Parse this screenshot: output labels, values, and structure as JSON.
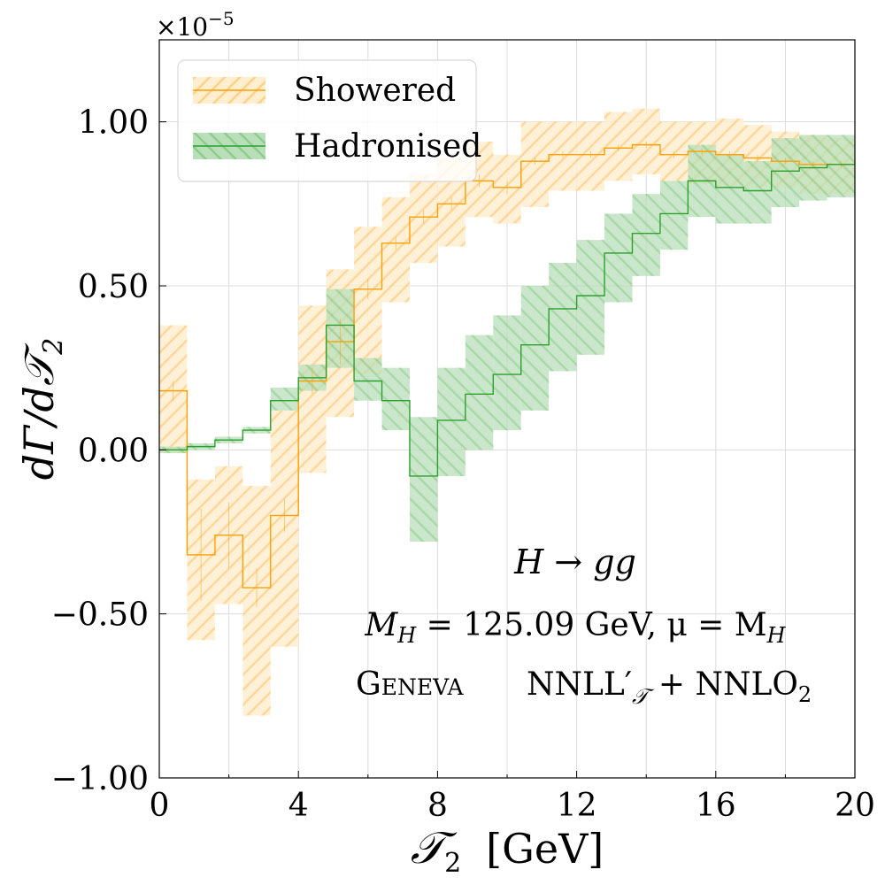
{
  "chart_data": {
    "type": "line",
    "xlabel_main": "𝒯",
    "xlabel_sub": "2",
    "xlabel_unit": "[GeV]",
    "ylabel_main": "dΓ/d𝒯",
    "ylabel_sub": "2",
    "y_scale_label": "×10",
    "y_scale_exp": "−5",
    "xlim": [
      0,
      20
    ],
    "ylim": [
      -1.0,
      1.25
    ],
    "x_ticks": [
      0,
      4,
      8,
      12,
      16,
      20
    ],
    "x_tick_labels": [
      "0",
      "4",
      "8",
      "12",
      "16",
      "20"
    ],
    "y_ticks": [
      -1.0,
      -0.5,
      0.0,
      0.5,
      1.0
    ],
    "y_tick_labels": [
      "−1.00",
      "−0.50",
      "0.00",
      "0.50",
      "1.00"
    ],
    "grid": true,
    "legend_position": "top-left",
    "bin_edges": [
      0,
      0.8,
      1.6,
      2.4,
      3.2,
      4.0,
      4.8,
      5.6,
      6.4,
      7.2,
      8.0,
      8.8,
      9.6,
      10.4,
      11.2,
      12.0,
      12.8,
      13.6,
      14.4,
      15.2,
      16.0,
      16.8,
      17.6,
      18.4,
      19.2,
      20.0
    ],
    "series": [
      {
        "name": "Showered",
        "color": "#ff9f00",
        "band_color": "#ffd89a",
        "values": [
          0.18,
          -0.32,
          -0.26,
          -0.42,
          -0.2,
          0.21,
          0.33,
          0.49,
          0.63,
          0.71,
          0.75,
          0.82,
          0.8,
          0.88,
          0.9,
          0.9,
          0.92,
          0.93,
          0.9,
          0.91,
          0.9,
          0.89,
          0.88,
          0.87,
          0.87
        ],
        "lower": [
          -0.01,
          -0.58,
          -0.47,
          -0.81,
          -0.6,
          -0.07,
          0.1,
          0.23,
          0.45,
          0.57,
          0.62,
          0.71,
          0.69,
          0.74,
          0.79,
          0.79,
          0.82,
          0.84,
          0.82,
          0.81,
          0.8,
          0.8,
          0.8,
          0.78,
          0.78
        ],
        "upper": [
          0.38,
          -0.09,
          -0.05,
          -0.11,
          0.12,
          0.44,
          0.55,
          0.68,
          0.77,
          0.84,
          0.89,
          0.94,
          0.9,
          1.0,
          1.0,
          1.0,
          1.03,
          1.04,
          1.0,
          1.0,
          1.01,
          0.99,
          0.97,
          0.96,
          0.95
        ],
        "errors": [
          0.03,
          0.14,
          0.1,
          0.06,
          0.05,
          0.04,
          0.07,
          0.03,
          0.02,
          0.02,
          0.02,
          0.02,
          0.02,
          0.01,
          0.01,
          0.01,
          0.01,
          0.01,
          0.01,
          0.01,
          0.01,
          0.01,
          0.01,
          0.01,
          0.01
        ]
      },
      {
        "name": "Hadronised",
        "color": "#2ca02c",
        "band_color": "#9fd49f",
        "values": [
          0.0,
          0.01,
          0.03,
          0.06,
          0.15,
          0.22,
          0.38,
          0.21,
          0.15,
          -0.08,
          0.09,
          0.17,
          0.23,
          0.32,
          0.43,
          0.47,
          0.6,
          0.66,
          0.72,
          0.82,
          0.8,
          0.79,
          0.85,
          0.86,
          0.87
        ],
        "lower": [
          -0.01,
          0.0,
          0.02,
          0.05,
          0.12,
          0.18,
          0.25,
          0.15,
          0.06,
          -0.28,
          -0.08,
          0.0,
          0.06,
          0.12,
          0.24,
          0.29,
          0.45,
          0.53,
          0.61,
          0.71,
          0.69,
          0.69,
          0.74,
          0.76,
          0.77
        ],
        "upper": [
          0.01,
          0.02,
          0.04,
          0.07,
          0.19,
          0.26,
          0.49,
          0.28,
          0.25,
          0.1,
          0.25,
          0.35,
          0.41,
          0.5,
          0.57,
          0.64,
          0.72,
          0.78,
          0.82,
          0.93,
          0.9,
          0.88,
          0.95,
          0.96,
          0.96
        ]
      }
    ]
  },
  "annotations": {
    "process": "H → gg",
    "params": "M",
    "params_sub": "H",
    "params_rest": " = 125.09 GeV,  μ = M",
    "params_sub2": "H",
    "generator": "Geneva",
    "accuracy": "NNLL′",
    "accuracy_sub": "𝒯",
    "accuracy_rest": " + NNLO",
    "accuracy_sub2": "2"
  }
}
